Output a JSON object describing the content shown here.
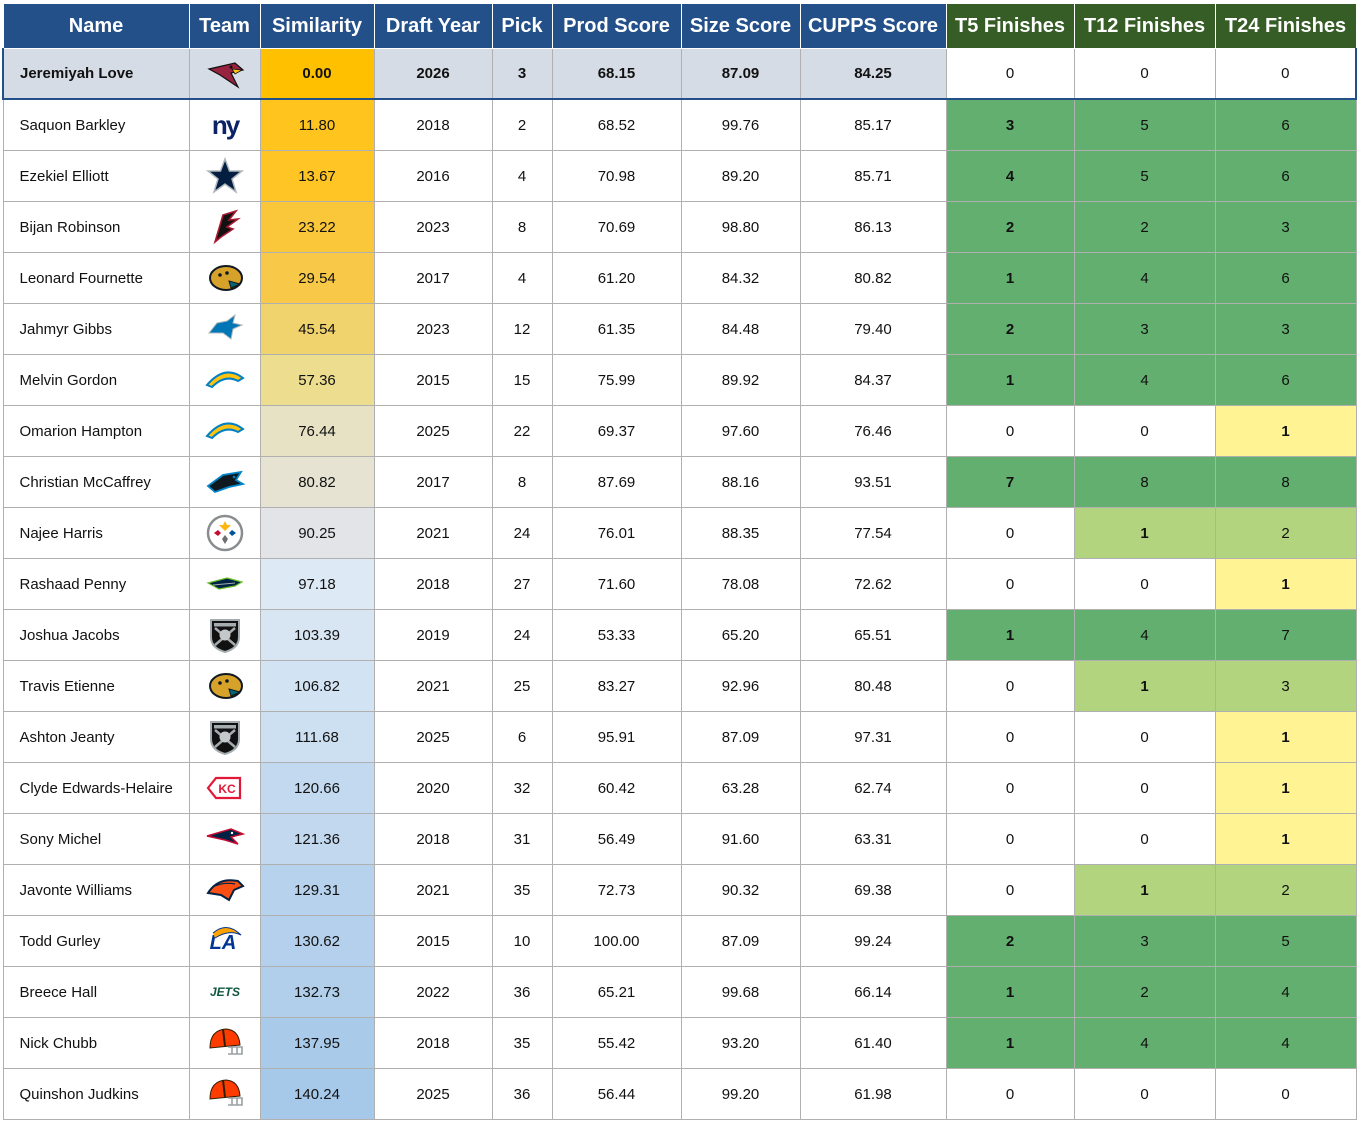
{
  "columns": [
    "Name",
    "Team",
    "Similarity",
    "Draft Year",
    "Pick",
    "Prod Score",
    "Size Score",
    "CUPPS Score",
    "T5 Finishes",
    "T12 Finishes",
    "T24 Finishes"
  ],
  "colors": {
    "header_blue": "#24508a",
    "header_green": "#365d26",
    "target_row": "#d6dce5",
    "outcome_high": "#63af6f",
    "outcome_mid": "#b2d47f",
    "outcome_low": "#fff394",
    "outcome_none": "#ffffff"
  },
  "target": {
    "name": "Jeremiyah Love",
    "team": "Cardinals",
    "logo": "cardinals-icon",
    "similarity": "0.00",
    "year": "2026",
    "pick": "3",
    "prod": "68.15",
    "size": "87.09",
    "cupps": "84.25",
    "t5": "0",
    "t12": "0",
    "t24": "0",
    "sim_color": "#ffc000"
  },
  "rows": [
    {
      "name": "Saquon Barkley",
      "team": "Giants",
      "logo": "giants-icon",
      "similarity": "11.80",
      "year": "2018",
      "pick": "2",
      "prod": "68.52",
      "size": "99.76",
      "cupps": "85.17",
      "t5": "3",
      "t12": "5",
      "t24": "6",
      "sim_color": "#ffc51e",
      "t5_color": "#63af6f",
      "t12_color": "#63af6f",
      "t24_color": "#63af6f"
    },
    {
      "name": "Ezekiel Elliott",
      "team": "Cowboys",
      "logo": "cowboys-icon",
      "similarity": "13.67",
      "year": "2016",
      "pick": "4",
      "prod": "70.98",
      "size": "89.20",
      "cupps": "85.71",
      "t5": "4",
      "t12": "5",
      "t24": "6",
      "sim_color": "#ffc524",
      "t5_color": "#63af6f",
      "t12_color": "#63af6f",
      "t24_color": "#63af6f"
    },
    {
      "name": "Bijan Robinson",
      "team": "Falcons",
      "logo": "falcons-icon",
      "similarity": "23.22",
      "year": "2023",
      "pick": "8",
      "prod": "70.69",
      "size": "98.80",
      "cupps": "86.13",
      "t5": "2",
      "t12": "2",
      "t24": "3",
      "sim_color": "#fbc73a",
      "t5_color": "#63af6f",
      "t12_color": "#63af6f",
      "t24_color": "#63af6f"
    },
    {
      "name": "Leonard Fournette",
      "team": "Jaguars",
      "logo": "jaguars-icon",
      "similarity": "29.54",
      "year": "2017",
      "pick": "4",
      "prod": "61.20",
      "size": "84.32",
      "cupps": "80.82",
      "t5": "1",
      "t12": "4",
      "t24": "6",
      "sim_color": "#f8c948",
      "t5_color": "#63af6f",
      "t12_color": "#63af6f",
      "t24_color": "#63af6f"
    },
    {
      "name": "Jahmyr Gibbs",
      "team": "Lions",
      "logo": "lions-icon",
      "similarity": "45.54",
      "year": "2023",
      "pick": "12",
      "prod": "61.35",
      "size": "84.48",
      "cupps": "79.40",
      "t5": "2",
      "t12": "3",
      "t24": "3",
      "sim_color": "#f1d36e",
      "t5_color": "#63af6f",
      "t12_color": "#63af6f",
      "t24_color": "#63af6f"
    },
    {
      "name": "Melvin Gordon",
      "team": "Chargers",
      "logo": "chargers-icon",
      "similarity": "57.36",
      "year": "2015",
      "pick": "15",
      "prod": "75.99",
      "size": "89.92",
      "cupps": "84.37",
      "t5": "1",
      "t12": "4",
      "t24": "6",
      "sim_color": "#eddd8f",
      "t5_color": "#63af6f",
      "t12_color": "#63af6f",
      "t24_color": "#63af6f"
    },
    {
      "name": "Omarion Hampton",
      "team": "Chargers",
      "logo": "chargers-icon",
      "similarity": "76.44",
      "year": "2025",
      "pick": "22",
      "prod": "69.37",
      "size": "97.60",
      "cupps": "76.46",
      "t5": "0",
      "t12": "0",
      "t24": "1",
      "sim_color": "#e8e2c4",
      "t5_color": "#ffffff",
      "t12_color": "#ffffff",
      "t24_color": "#fff394"
    },
    {
      "name": "Christian McCaffrey",
      "team": "Panthers",
      "logo": "panthers-icon",
      "similarity": "80.82",
      "year": "2017",
      "pick": "8",
      "prod": "87.69",
      "size": "88.16",
      "cupps": "93.51",
      "t5": "7",
      "t12": "8",
      "t24": "8",
      "sim_color": "#e6e3d2",
      "t5_color": "#63af6f",
      "t12_color": "#63af6f",
      "t24_color": "#63af6f"
    },
    {
      "name": "Najee Harris",
      "team": "Steelers",
      "logo": "steelers-icon",
      "similarity": "90.25",
      "year": "2021",
      "pick": "24",
      "prod": "76.01",
      "size": "88.35",
      "cupps": "77.54",
      "t5": "0",
      "t12": "1",
      "t24": "2",
      "sim_color": "#e2e4e7",
      "t5_color": "#ffffff",
      "t12_color": "#b2d47f",
      "t24_color": "#b2d47f"
    },
    {
      "name": "Rashaad Penny",
      "team": "Seahawks",
      "logo": "seahawks-icon",
      "similarity": "97.18",
      "year": "2018",
      "pick": "27",
      "prod": "71.60",
      "size": "78.08",
      "cupps": "72.62",
      "t5": "0",
      "t12": "0",
      "t24": "1",
      "sim_color": "#dde9f5",
      "t5_color": "#ffffff",
      "t12_color": "#ffffff",
      "t24_color": "#fff394"
    },
    {
      "name": "Joshua Jacobs",
      "team": "Raiders",
      "logo": "raiders-icon",
      "similarity": "103.39",
      "year": "2019",
      "pick": "24",
      "prod": "53.33",
      "size": "65.20",
      "cupps": "65.51",
      "t5": "1",
      "t12": "4",
      "t24": "7",
      "sim_color": "#d8e6f4",
      "t5_color": "#63af6f",
      "t12_color": "#63af6f",
      "t24_color": "#63af6f"
    },
    {
      "name": "Travis Etienne",
      "team": "Jaguars",
      "logo": "jaguars-icon",
      "similarity": "106.82",
      "year": "2021",
      "pick": "25",
      "prod": "83.27",
      "size": "92.96",
      "cupps": "80.48",
      "t5": "0",
      "t12": "1",
      "t24": "3",
      "sim_color": "#d2e3f3",
      "t5_color": "#ffffff",
      "t12_color": "#b2d47f",
      "t24_color": "#b2d47f"
    },
    {
      "name": "Ashton Jeanty",
      "team": "Raiders",
      "logo": "raiders-icon",
      "similarity": "111.68",
      "year": "2025",
      "pick": "6",
      "prod": "95.91",
      "size": "87.09",
      "cupps": "97.31",
      "t5": "0",
      "t12": "0",
      "t24": "1",
      "sim_color": "#cde0f2",
      "t5_color": "#ffffff",
      "t12_color": "#ffffff",
      "t24_color": "#fff394"
    },
    {
      "name": "Clyde Edwards-Helaire",
      "team": "Chiefs",
      "logo": "chiefs-icon",
      "similarity": "120.66",
      "year": "2020",
      "pick": "32",
      "prod": "60.42",
      "size": "63.28",
      "cupps": "62.74",
      "t5": "0",
      "t12": "0",
      "t24": "1",
      "sim_color": "#c2d9f0",
      "t5_color": "#ffffff",
      "t12_color": "#ffffff",
      "t24_color": "#fff394"
    },
    {
      "name": "Sony Michel",
      "team": "Patriots",
      "logo": "patriots-icon",
      "similarity": "121.36",
      "year": "2018",
      "pick": "31",
      "prod": "56.49",
      "size": "91.60",
      "cupps": "63.31",
      "t5": "0",
      "t12": "0",
      "t24": "1",
      "sim_color": "#c1d8ef",
      "t5_color": "#ffffff",
      "t12_color": "#ffffff",
      "t24_color": "#fff394"
    },
    {
      "name": "Javonte Williams",
      "team": "Broncos",
      "logo": "broncos-icon",
      "similarity": "129.31",
      "year": "2021",
      "pick": "35",
      "prod": "72.73",
      "size": "90.32",
      "cupps": "69.38",
      "t5": "0",
      "t12": "1",
      "t24": "2",
      "sim_color": "#b6d2ed",
      "t5_color": "#ffffff",
      "t12_color": "#b2d47f",
      "t24_color": "#b2d47f"
    },
    {
      "name": "Todd Gurley",
      "team": "Rams",
      "logo": "rams-icon",
      "similarity": "130.62",
      "year": "2015",
      "pick": "10",
      "prod": "100.00",
      "size": "87.09",
      "cupps": "99.24",
      "t5": "2",
      "t12": "3",
      "t24": "5",
      "sim_color": "#b4d0ec",
      "t5_color": "#63af6f",
      "t12_color": "#63af6f",
      "t24_color": "#63af6f"
    },
    {
      "name": "Breece Hall",
      "team": "Jets",
      "logo": "jets-icon",
      "similarity": "132.73",
      "year": "2022",
      "pick": "36",
      "prod": "65.21",
      "size": "99.68",
      "cupps": "66.14",
      "t5": "1",
      "t12": "2",
      "t24": "4",
      "sim_color": "#b1cfeb",
      "t5_color": "#63af6f",
      "t12_color": "#63af6f",
      "t24_color": "#63af6f"
    },
    {
      "name": "Nick Chubb",
      "team": "Browns",
      "logo": "browns-icon",
      "similarity": "137.95",
      "year": "2018",
      "pick": "35",
      "prod": "55.42",
      "size": "93.20",
      "cupps": "61.40",
      "t5": "1",
      "t12": "4",
      "t24": "4",
      "sim_color": "#aacaea",
      "t5_color": "#63af6f",
      "t12_color": "#63af6f",
      "t24_color": "#63af6f"
    },
    {
      "name": "Quinshon Judkins",
      "team": "Browns",
      "logo": "browns-icon",
      "similarity": "140.24",
      "year": "2025",
      "pick": "36",
      "prod": "56.44",
      "size": "99.20",
      "cupps": "61.98",
      "t5": "0",
      "t12": "0",
      "t24": "0",
      "sim_color": "#a6c8e9",
      "t5_color": "#ffffff",
      "t12_color": "#ffffff",
      "t24_color": "#ffffff"
    }
  ]
}
